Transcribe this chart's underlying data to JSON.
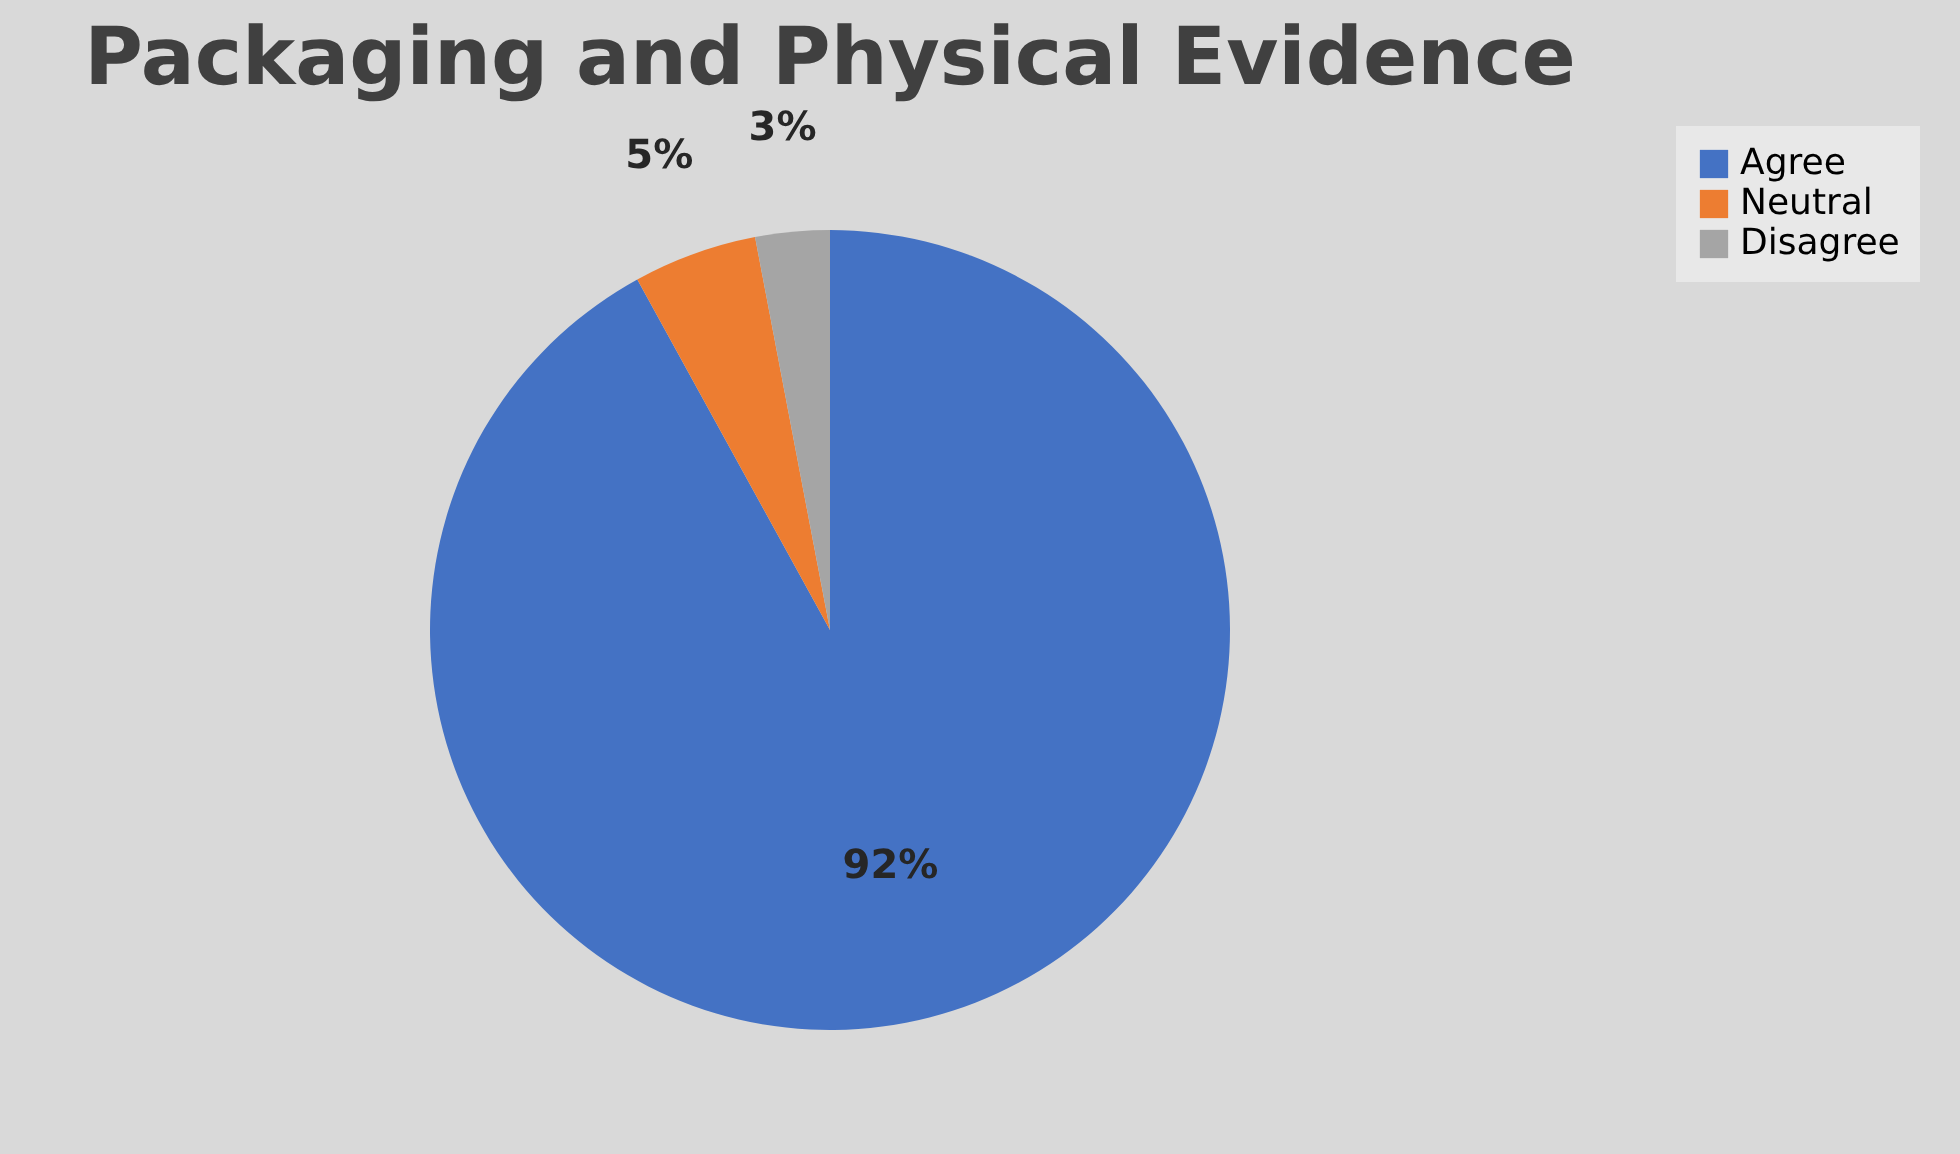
{
  "chart_data": {
    "type": "pie",
    "title": "Packaging and Physical Evidence",
    "categories": [
      "Agree",
      "Neutral",
      "Disagree"
    ],
    "values": [
      92,
      5,
      3
    ],
    "colors": [
      "#4472c4",
      "#ed7d31",
      "#a5a5a5"
    ],
    "value_labels": [
      "92%",
      "5%",
      "3%"
    ],
    "legend": "right"
  }
}
